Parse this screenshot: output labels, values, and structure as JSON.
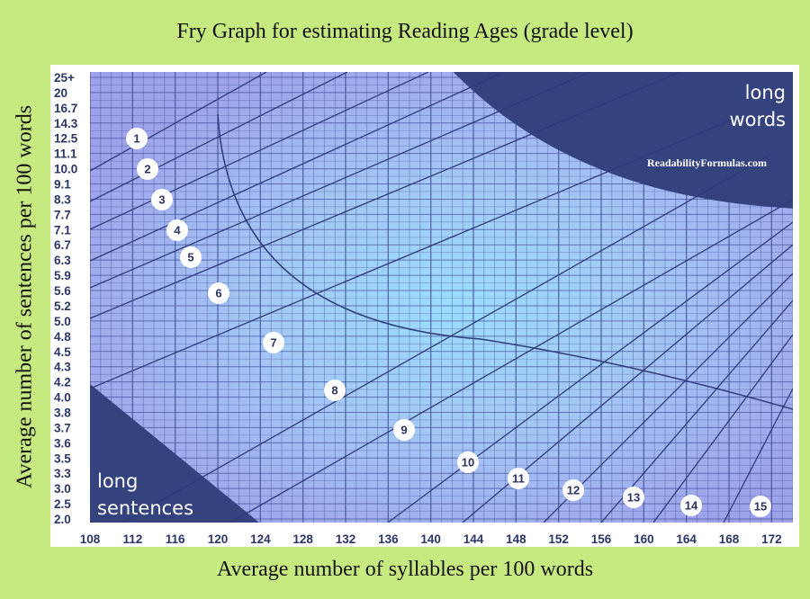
{
  "chart_data": {
    "type": "line",
    "title": "Fry Graph for estimating Reading Ages (grade level)",
    "xlabel": "Average number of syllables per 100 words",
    "ylabel": "Average number of sentences per 100 words",
    "xlim": [
      108,
      174
    ],
    "x_ticks": [
      "108",
      "112",
      "116",
      "120",
      "124",
      "128",
      "132",
      "136",
      "140",
      "144",
      "148",
      "152",
      "156",
      "160",
      "164",
      "168",
      "172"
    ],
    "y_ticks": [
      "25+",
      "20",
      "16.7",
      "14.3",
      "12.5",
      "11.1",
      "10.0",
      "9.1",
      "8.3",
      "7.7",
      "7.1",
      "6.7",
      "6.3",
      "5.9",
      "5.6",
      "5.2",
      "5.0",
      "4.8",
      "4.5",
      "4.3",
      "4.2",
      "4.0",
      "3.8",
      "3.7",
      "3.6",
      "3.5",
      "3.3",
      "3.0",
      "2.5",
      "2.0"
    ],
    "grade_labels": [
      "1",
      "2",
      "3",
      "4",
      "5",
      "6",
      "7",
      "8",
      "9",
      "10",
      "11",
      "12",
      "13",
      "14",
      "15"
    ],
    "regions": {
      "long_words": [
        "long",
        "words"
      ],
      "long_sentences": [
        "long",
        "sentences"
      ]
    },
    "credit": "ReadabilityFormulas.com",
    "grid": true,
    "colors": {
      "background": "#c7ea80",
      "plot_glow": "#9bd6ff",
      "plot_base": "#9fa6ea",
      "grid_line": "#3a4790",
      "region": "#34437e"
    }
  }
}
